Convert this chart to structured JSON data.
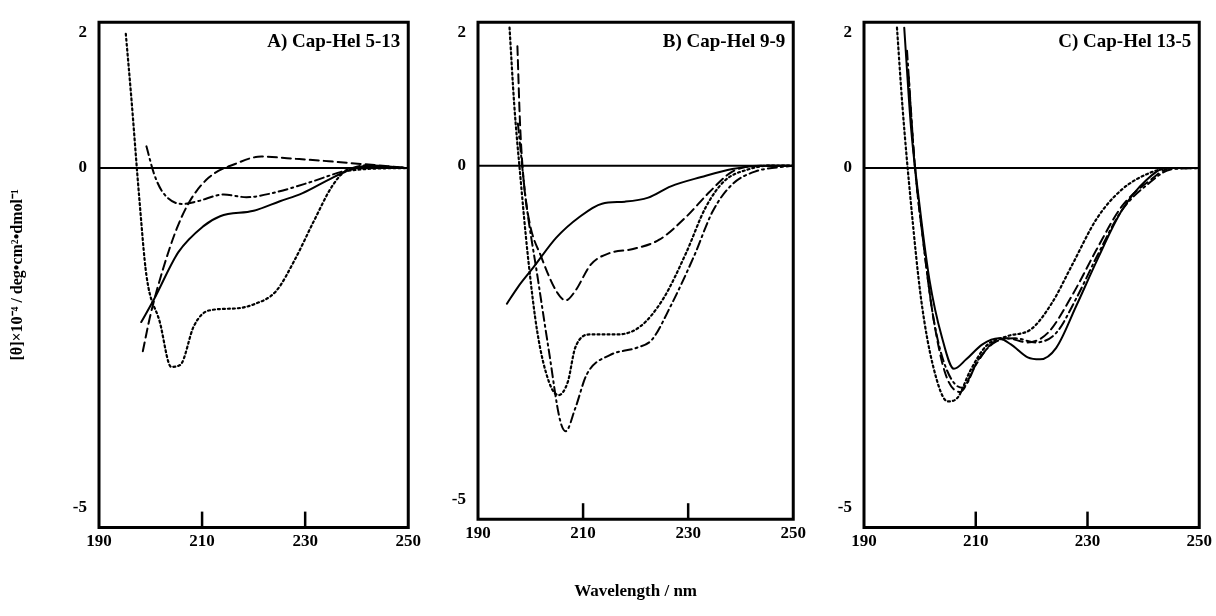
{
  "chart_data": [
    {
      "type": "line",
      "title": "A) Cap-Hel 5-13",
      "ylabel": "[θ]×10⁻⁴ / deg•cm²•dmol⁻¹",
      "xlim": [
        190,
        250
      ],
      "xticks": [
        190,
        210,
        230,
        250
      ],
      "ylim": [
        -5.3,
        2.15
      ],
      "yticks": [
        -5,
        0,
        2
      ],
      "grid": false,
      "legend": false,
      "marker": "none",
      "ref_lines": [
        {
          "axis": "y",
          "value": 0,
          "color": "#000000"
        }
      ],
      "series": [
        {
          "color": "#000000",
          "line_style": "solid",
          "x": [
            198.2,
            200.7,
            205.4,
            210.2,
            213.5,
            220,
            225.1,
            229.5,
            234.6,
            238.2,
            241.9,
            250
          ],
          "values": [
            -2.27,
            -1.93,
            -1.24,
            -0.86,
            -0.71,
            -0.63,
            -0.49,
            -0.37,
            -0.17,
            -0.04,
            0.03,
            0
          ]
        },
        {
          "color": "#000000",
          "line_style": "dashed",
          "x": [
            198.5,
            200,
            202.5,
            205.1,
            207.6,
            211.3,
            216.4,
            221.5,
            227.3,
            234.6,
            250
          ],
          "values": [
            -2.7,
            -2.16,
            -1.47,
            -0.89,
            -0.49,
            -0.14,
            0.06,
            0.17,
            0.14,
            0.1,
            0
          ]
        },
        {
          "color": "#000000",
          "line_style": "dashdot",
          "x": [
            199.2,
            200.7,
            202.5,
            206.2,
            209.1,
            214.2,
            218.6,
            223.6,
            230.9,
            236.8,
            241.9,
            250
          ],
          "values": [
            0.32,
            -0.09,
            -0.37,
            -0.53,
            -0.49,
            -0.39,
            -0.43,
            -0.37,
            -0.21,
            -0.06,
            0.04,
            0
          ]
        },
        {
          "color": "#000000",
          "line_style": "dotted",
          "x": [
            195.2,
            196.3,
            197.8,
            199.2,
            201.8,
            204,
            205.8,
            208.4,
            211.3,
            216.4,
            220,
            224.4,
            228,
            231.7,
            235.3,
            238.2,
            250
          ],
          "values": [
            1.98,
            1.01,
            -0.43,
            -1.58,
            -2.27,
            -2.93,
            -2.9,
            -2.33,
            -2.1,
            -2.07,
            -2.01,
            -1.81,
            -1.35,
            -0.78,
            -0.26,
            -0.04,
            0
          ]
        }
      ]
    },
    {
      "type": "line",
      "title": "B) Cap-Hel 9-9",
      "xlabel": "Wavelength / nm",
      "xlim": [
        190,
        250
      ],
      "xticks": [
        190,
        210,
        230,
        250
      ],
      "ylim": [
        -5.3,
        2.15
      ],
      "yticks": [
        -5,
        0,
        2
      ],
      "grid": false,
      "legend": false,
      "marker": "none",
      "ref_lines": [
        {
          "axis": "y",
          "value": 0,
          "color": "#000000"
        }
      ],
      "series": [
        {
          "color": "#000000",
          "line_style": "solid",
          "x": [
            195.5,
            197.6,
            200.5,
            204.9,
            209.3,
            213.6,
            218,
            222.4,
            226.7,
            232.5,
            238.4,
            244.2,
            250
          ],
          "values": [
            -2.07,
            -1.82,
            -1.53,
            -1.08,
            -0.77,
            -0.57,
            -0.54,
            -0.48,
            -0.31,
            -0.17,
            -0.05,
            0,
            0
          ]
        },
        {
          "color": "#000000",
          "line_style": "dashed",
          "x": [
            197.5,
            198,
            198.7,
            199.8,
            202,
            204.9,
            206.7,
            208.5,
            211.5,
            215.1,
            219.5,
            224.5,
            229.6,
            234,
            238.4,
            244.2,
            250
          ],
          "values": [
            1.79,
            0.63,
            -0.23,
            -0.85,
            -1.36,
            -1.88,
            -2.02,
            -1.88,
            -1.48,
            -1.31,
            -1.25,
            -1.11,
            -0.77,
            -0.4,
            -0.09,
            0,
            0
          ]
        },
        {
          "color": "#000000",
          "line_style": "dotted",
          "x": [
            196,
            196.9,
            198,
            199.5,
            201.3,
            203.5,
            205.3,
            207.1,
            208.5,
            211.5,
            216.5,
            220.9,
            225.3,
            229.6,
            233.3,
            236.9,
            241.3,
            245.6,
            250
          ],
          "values": [
            2.07,
            0.91,
            -0.11,
            -1.36,
            -2.5,
            -3.24,
            -3.44,
            -3.24,
            -2.73,
            -2.53,
            -2.53,
            -2.41,
            -1.99,
            -1.31,
            -0.63,
            -0.23,
            -0.06,
            0,
            0
          ]
        },
        {
          "color": "#000000",
          "line_style": "dashdot",
          "x": [
            197.6,
            199.1,
            201.3,
            203.5,
            205.6,
            206.7,
            208.5,
            210.7,
            215.1,
            220.2,
            223.1,
            226.7,
            231.1,
            234.7,
            238.4,
            242.7,
            250
          ],
          "values": [
            0.63,
            -0.51,
            -1.65,
            -2.78,
            -3.81,
            -3.98,
            -3.64,
            -3.13,
            -2.84,
            -2.73,
            -2.61,
            -2.1,
            -1.36,
            -0.68,
            -0.28,
            -0.09,
            0
          ]
        }
      ]
    },
    {
      "type": "line",
      "title": "C) Cap-Hel 13-5",
      "xlim": [
        190,
        250
      ],
      "xticks": [
        190,
        210,
        230,
        250
      ],
      "ylim": [
        -5.3,
        2.15
      ],
      "yticks": [
        -5,
        0,
        2
      ],
      "grid": false,
      "legend": false,
      "marker": "none",
      "ref_lines": [
        {
          "axis": "y",
          "value": 0,
          "color": "#000000"
        }
      ],
      "series": [
        {
          "color": "#000000",
          "line_style": "solid",
          "x": [
            197.2,
            198.4,
            199.9,
            201.7,
            203.9,
            206.1,
            208.3,
            211.2,
            214.1,
            216.3,
            219.3,
            221.5,
            224.4,
            228,
            231.7,
            236.1,
            240.5,
            244.1,
            250
          ],
          "values": [
            2.07,
            0.61,
            -0.52,
            -1.64,
            -2.48,
            -2.96,
            -2.82,
            -2.6,
            -2.51,
            -2.6,
            -2.79,
            -2.82,
            -2.65,
            -2.03,
            -1.36,
            -0.63,
            -0.18,
            0,
            0
          ]
        },
        {
          "color": "#000000",
          "line_style": "dashed",
          "x": [
            198,
            199.1,
            200.6,
            202.4,
            204.6,
            207.2,
            209.8,
            212.7,
            215.6,
            219.3,
            222.9,
            227.3,
            231.7,
            236.1,
            241.2,
            244.9,
            250
          ],
          "values": [
            1.34,
            0.04,
            -1.08,
            -2.2,
            -3.04,
            -3.3,
            -2.93,
            -2.6,
            -2.51,
            -2.57,
            -2.43,
            -1.87,
            -1.19,
            -0.57,
            -0.18,
            0,
            0
          ]
        },
        {
          "color": "#000000",
          "line_style": "dashdot",
          "x": [
            197.7,
            199.1,
            200.6,
            202.4,
            204.6,
            207.6,
            210.5,
            213.4,
            217.1,
            220.7,
            224.4,
            228,
            231.7,
            236.1,
            241.2,
            244.9,
            250
          ],
          "values": [
            1.73,
            0.04,
            -1.08,
            -2.2,
            -2.93,
            -3.24,
            -2.82,
            -2.57,
            -2.51,
            -2.57,
            -2.43,
            -1.92,
            -1.3,
            -0.63,
            -0.21,
            -0.02,
            0
          ]
        },
        {
          "color": "#000000",
          "line_style": "dotted",
          "x": [
            195.9,
            196.9,
            198.4,
            200.2,
            202.4,
            205,
            206.8,
            209,
            211.9,
            215.6,
            220,
            223.7,
            227.3,
            231.7,
            236.1,
            241.2,
            244.9,
            250
          ],
          "values": [
            2.07,
            0.89,
            -0.52,
            -1.92,
            -2.93,
            -3.44,
            -3.38,
            -2.99,
            -2.62,
            -2.48,
            -2.37,
            -1.98,
            -1.42,
            -0.74,
            -0.32,
            -0.07,
            0,
            0
          ]
        }
      ]
    }
  ]
}
